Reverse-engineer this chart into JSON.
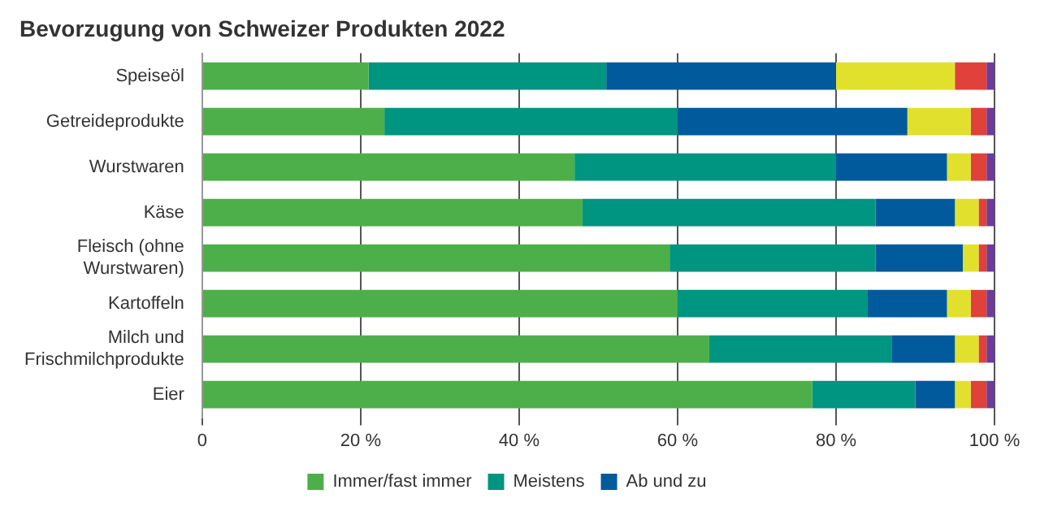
{
  "chart_data": {
    "type": "bar",
    "orientation": "horizontal",
    "stacked": true,
    "title": "Bevorzugung von Schweizer Produkten 2022",
    "categories": [
      "Speiseöl",
      "Getreideprodukte",
      "Wurstwaren",
      "Käse",
      "Fleisch (ohne Wurstwaren)",
      "Kartoffeln",
      "Milch und Frischmilchprodukte",
      "Eier"
    ],
    "series": [
      {
        "name": "Immer/fast immer",
        "color": "#4daf4a",
        "values": [
          21,
          23,
          47,
          48,
          59,
          60,
          64,
          77
        ]
      },
      {
        "name": "Meistens",
        "color": "#009580",
        "values": [
          30,
          37,
          33,
          37,
          26,
          24,
          23,
          13
        ]
      },
      {
        "name": "Ab und zu",
        "color": "#005a9c",
        "values": [
          29,
          29,
          14,
          10,
          11,
          10,
          8,
          5
        ]
      },
      {
        "color": "#e1e12d",
        "values": [
          15,
          8,
          3,
          3,
          2,
          3,
          3,
          2
        ]
      },
      {
        "color": "#e0413a",
        "values": [
          4,
          2,
          2,
          1,
          1,
          2,
          1,
          2
        ]
      },
      {
        "color": "#6a3d9a",
        "values": [
          1,
          1,
          1,
          1,
          1,
          1,
          1,
          1
        ]
      }
    ],
    "xlim": [
      0,
      100
    ],
    "xticks": [
      0,
      {
        "value": 20,
        "label": "20 %"
      },
      {
        "value": 40,
        "label": "40 %"
      },
      {
        "value": 60,
        "label": "60 %"
      },
      {
        "value": 80,
        "label": "80 %"
      },
      {
        "value": 100,
        "label": "100 %"
      }
    ],
    "grid": "x",
    "legend": "bottom"
  }
}
